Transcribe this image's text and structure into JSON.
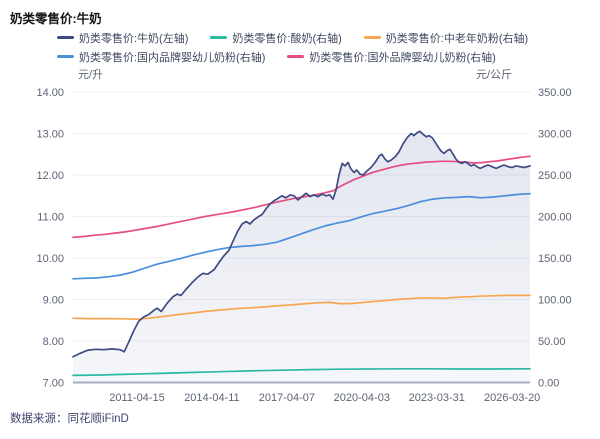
{
  "header": {
    "title": "奶类零售价:牛奶"
  },
  "footer": {
    "text": "数据来源：同花顺iFinD"
  },
  "chart_data": {
    "type": "line",
    "title": "奶类零售价:牛奶",
    "grid": true,
    "legend_position": "top",
    "legend_rows": [
      [
        0,
        1,
        2
      ],
      [
        3,
        4
      ]
    ],
    "left_axis": {
      "name": "元/升",
      "min": 7,
      "max": 14,
      "tick_labels": [
        "14.00",
        "13.00",
        "12.00",
        "11.00",
        "10.00",
        "9.00",
        "8.00",
        "7.00"
      ]
    },
    "right_axis": {
      "name": "元/公斤",
      "min": 0,
      "max": 350,
      "tick_labels": [
        "350.00",
        "300.00",
        "250.00",
        "200.00",
        "150.00",
        "100.00",
        "50.00",
        "0.00"
      ]
    },
    "x_axis": {
      "tick_labels": [
        "2011-04-15",
        "2014-04-11",
        "2017-04-07",
        "2020-04-03",
        "2023-03-31",
        "2026-03-20"
      ],
      "tick_positions": [
        0.14,
        0.304,
        0.468,
        0.632,
        0.796,
        0.961
      ]
    },
    "series": [
      {
        "name": "奶类零售价:牛奶(左轴)",
        "axis": "left",
        "color": "#3e4b82",
        "area": true,
        "points": [
          [
            0,
            7.62
          ],
          [
            0.015,
            7.7
          ],
          [
            0.033,
            7.78
          ],
          [
            0.05,
            7.8
          ],
          [
            0.068,
            7.79
          ],
          [
            0.085,
            7.81
          ],
          [
            0.103,
            7.79
          ],
          [
            0.112,
            7.74
          ],
          [
            0.123,
            8.0
          ],
          [
            0.133,
            8.25
          ],
          [
            0.144,
            8.48
          ],
          [
            0.155,
            8.58
          ],
          [
            0.166,
            8.64
          ],
          [
            0.177,
            8.74
          ],
          [
            0.184,
            8.79
          ],
          [
            0.193,
            8.71
          ],
          [
            0.206,
            8.91
          ],
          [
            0.219,
            9.07
          ],
          [
            0.228,
            9.13
          ],
          [
            0.236,
            9.1
          ],
          [
            0.247,
            9.24
          ],
          [
            0.26,
            9.4
          ],
          [
            0.274,
            9.55
          ],
          [
            0.284,
            9.63
          ],
          [
            0.295,
            9.61
          ],
          [
            0.309,
            9.72
          ],
          [
            0.32,
            9.9
          ],
          [
            0.33,
            10.05
          ],
          [
            0.341,
            10.18
          ],
          [
            0.352,
            10.45
          ],
          [
            0.361,
            10.66
          ],
          [
            0.37,
            10.82
          ],
          [
            0.379,
            10.88
          ],
          [
            0.387,
            10.82
          ],
          [
            0.396,
            10.92
          ],
          [
            0.405,
            10.99
          ],
          [
            0.414,
            11.05
          ],
          [
            0.422,
            11.18
          ],
          [
            0.431,
            11.3
          ],
          [
            0.44,
            11.38
          ],
          [
            0.449,
            11.44
          ],
          [
            0.457,
            11.5
          ],
          [
            0.466,
            11.45
          ],
          [
            0.475,
            11.52
          ],
          [
            0.484,
            11.5
          ],
          [
            0.492,
            11.4
          ],
          [
            0.501,
            11.48
          ],
          [
            0.51,
            11.56
          ],
          [
            0.519,
            11.48
          ],
          [
            0.527,
            11.52
          ],
          [
            0.536,
            11.48
          ],
          [
            0.545,
            11.54
          ],
          [
            0.554,
            11.5
          ],
          [
            0.562,
            11.52
          ],
          [
            0.569,
            11.42
          ],
          [
            0.576,
            11.65
          ],
          [
            0.582,
            12.0
          ],
          [
            0.589,
            12.28
          ],
          [
            0.595,
            12.22
          ],
          [
            0.602,
            12.3
          ],
          [
            0.608,
            12.15
          ],
          [
            0.615,
            12.06
          ],
          [
            0.621,
            12.12
          ],
          [
            0.628,
            12.02
          ],
          [
            0.635,
            12.0
          ],
          [
            0.643,
            12.1
          ],
          [
            0.652,
            12.18
          ],
          [
            0.661,
            12.3
          ],
          [
            0.67,
            12.46
          ],
          [
            0.676,
            12.5
          ],
          [
            0.683,
            12.38
          ],
          [
            0.689,
            12.32
          ],
          [
            0.696,
            12.36
          ],
          [
            0.705,
            12.44
          ],
          [
            0.713,
            12.55
          ],
          [
            0.722,
            12.75
          ],
          [
            0.731,
            12.9
          ],
          [
            0.74,
            13.0
          ],
          [
            0.746,
            12.95
          ],
          [
            0.753,
            13.02
          ],
          [
            0.759,
            13.05
          ],
          [
            0.766,
            12.98
          ],
          [
            0.773,
            12.92
          ],
          [
            0.779,
            12.95
          ],
          [
            0.786,
            12.9
          ],
          [
            0.792,
            12.8
          ],
          [
            0.799,
            12.68
          ],
          [
            0.805,
            12.58
          ],
          [
            0.812,
            12.52
          ],
          [
            0.818,
            12.58
          ],
          [
            0.825,
            12.62
          ],
          [
            0.832,
            12.5
          ],
          [
            0.838,
            12.38
          ],
          [
            0.845,
            12.3
          ],
          [
            0.851,
            12.28
          ],
          [
            0.858,
            12.32
          ],
          [
            0.864,
            12.28
          ],
          [
            0.871,
            12.22
          ],
          [
            0.877,
            12.25
          ],
          [
            0.884,
            12.2
          ],
          [
            0.891,
            12.16
          ],
          [
            0.899,
            12.2
          ],
          [
            0.908,
            12.24
          ],
          [
            0.917,
            12.2
          ],
          [
            0.926,
            12.16
          ],
          [
            0.934,
            12.2
          ],
          [
            0.943,
            12.24
          ],
          [
            0.952,
            12.2
          ],
          [
            0.961,
            12.18
          ],
          [
            0.969,
            12.22
          ],
          [
            0.978,
            12.2
          ],
          [
            0.987,
            12.18
          ],
          [
            1,
            12.22
          ]
        ]
      },
      {
        "name": "奶类零售价:酸奶(右轴)",
        "axis": "right",
        "color": "#2dbaa2",
        "area": false,
        "points": [
          [
            0,
            8.5
          ],
          [
            0.059,
            9
          ],
          [
            0.125,
            10
          ],
          [
            0.19,
            11
          ],
          [
            0.256,
            12
          ],
          [
            0.322,
            13
          ],
          [
            0.387,
            14
          ],
          [
            0.453,
            14.8
          ],
          [
            0.519,
            15.5
          ],
          [
            0.584,
            16
          ],
          [
            0.65,
            16.3
          ],
          [
            0.716,
            16.5
          ],
          [
            0.781,
            16.5
          ],
          [
            0.847,
            16.3
          ],
          [
            0.912,
            16.3
          ],
          [
            0.956,
            16.4
          ],
          [
            1,
            16.5
          ]
        ]
      },
      {
        "name": "奶类零售价:中老年奶粉(右轴)",
        "axis": "right",
        "color": "#f7a650",
        "area": false,
        "points": [
          [
            0,
            77.5
          ],
          [
            0.037,
            77
          ],
          [
            0.074,
            77
          ],
          [
            0.112,
            76.8
          ],
          [
            0.142,
            76.3
          ],
          [
            0.173,
            78
          ],
          [
            0.204,
            80
          ],
          [
            0.234,
            82
          ],
          [
            0.265,
            84
          ],
          [
            0.295,
            86
          ],
          [
            0.326,
            87.5
          ],
          [
            0.357,
            89
          ],
          [
            0.387,
            90
          ],
          [
            0.418,
            91
          ],
          [
            0.449,
            92.5
          ],
          [
            0.479,
            93.5
          ],
          [
            0.51,
            95
          ],
          [
            0.536,
            96
          ],
          [
            0.562,
            96.5
          ],
          [
            0.584,
            95
          ],
          [
            0.606,
            95
          ],
          [
            0.628,
            96
          ],
          [
            0.654,
            97.5
          ],
          [
            0.681,
            98.5
          ],
          [
            0.707,
            100
          ],
          [
            0.733,
            101
          ],
          [
            0.759,
            101.8
          ],
          [
            0.786,
            102
          ],
          [
            0.812,
            101.5
          ],
          [
            0.838,
            102.5
          ],
          [
            0.864,
            103.2
          ],
          [
            0.891,
            104
          ],
          [
            0.917,
            104.5
          ],
          [
            0.947,
            105
          ],
          [
            0.974,
            105
          ],
          [
            1,
            105
          ]
        ]
      },
      {
        "name": "奶类零售价:国内品牌婴幼儿奶粉(右轴)",
        "axis": "right",
        "color": "#4a8edb",
        "area": false,
        "points": [
          [
            0,
            125
          ],
          [
            0.026,
            125.5
          ],
          [
            0.053,
            126
          ],
          [
            0.079,
            127.5
          ],
          [
            0.105,
            129.5
          ],
          [
            0.131,
            133
          ],
          [
            0.158,
            138
          ],
          [
            0.184,
            142.5
          ],
          [
            0.21,
            146
          ],
          [
            0.236,
            149.5
          ],
          [
            0.263,
            153.5
          ],
          [
            0.289,
            157
          ],
          [
            0.315,
            160
          ],
          [
            0.341,
            162.5
          ],
          [
            0.368,
            164
          ],
          [
            0.394,
            165
          ],
          [
            0.42,
            166.5
          ],
          [
            0.446,
            169
          ],
          [
            0.473,
            174
          ],
          [
            0.499,
            179
          ],
          [
            0.525,
            184
          ],
          [
            0.551,
            188.5
          ],
          [
            0.578,
            192
          ],
          [
            0.604,
            195
          ],
          [
            0.63,
            199.5
          ],
          [
            0.656,
            203.5
          ],
          [
            0.683,
            206.5
          ],
          [
            0.709,
            209.5
          ],
          [
            0.735,
            213.5
          ],
          [
            0.761,
            218
          ],
          [
            0.788,
            221
          ],
          [
            0.814,
            222.5
          ],
          [
            0.84,
            223
          ],
          [
            0.866,
            224
          ],
          [
            0.893,
            222.5
          ],
          [
            0.919,
            223.5
          ],
          [
            0.945,
            225
          ],
          [
            0.971,
            226.5
          ],
          [
            1,
            227.5
          ]
        ]
      },
      {
        "name": "奶类零售价:国外品牌婴幼儿奶粉(右轴)",
        "axis": "right",
        "color": "#e64c82",
        "area": false,
        "points": [
          [
            0,
            175
          ],
          [
            0.026,
            176
          ],
          [
            0.048,
            177.5
          ],
          [
            0.07,
            178.5
          ],
          [
            0.092,
            180
          ],
          [
            0.114,
            181.5
          ],
          [
            0.136,
            183.5
          ],
          [
            0.158,
            185.5
          ],
          [
            0.179,
            187.5
          ],
          [
            0.201,
            190
          ],
          [
            0.223,
            192.5
          ],
          [
            0.245,
            195
          ],
          [
            0.267,
            197.5
          ],
          [
            0.289,
            200
          ],
          [
            0.311,
            202
          ],
          [
            0.333,
            204
          ],
          [
            0.354,
            206
          ],
          [
            0.376,
            208.5
          ],
          [
            0.398,
            211
          ],
          [
            0.42,
            214
          ],
          [
            0.442,
            217
          ],
          [
            0.464,
            219.5
          ],
          [
            0.486,
            222
          ],
          [
            0.508,
            224
          ],
          [
            0.53,
            226
          ],
          [
            0.551,
            228.5
          ],
          [
            0.569,
            231
          ],
          [
            0.584,
            236
          ],
          [
            0.602,
            241
          ],
          [
            0.617,
            245
          ],
          [
            0.632,
            248
          ],
          [
            0.65,
            252
          ],
          [
            0.667,
            255
          ],
          [
            0.685,
            257.5
          ],
          [
            0.702,
            260
          ],
          [
            0.72,
            262
          ],
          [
            0.737,
            263.5
          ],
          [
            0.755,
            264.5
          ],
          [
            0.772,
            265.5
          ],
          [
            0.79,
            266
          ],
          [
            0.807,
            266.5
          ],
          [
            0.825,
            266.5
          ],
          [
            0.842,
            266
          ],
          [
            0.86,
            265.5
          ],
          [
            0.877,
            264.5
          ],
          [
            0.895,
            265
          ],
          [
            0.912,
            266
          ],
          [
            0.93,
            267
          ],
          [
            0.947,
            268.5
          ],
          [
            0.965,
            270
          ],
          [
            0.982,
            271.5
          ],
          [
            1,
            272.5
          ]
        ]
      }
    ]
  }
}
